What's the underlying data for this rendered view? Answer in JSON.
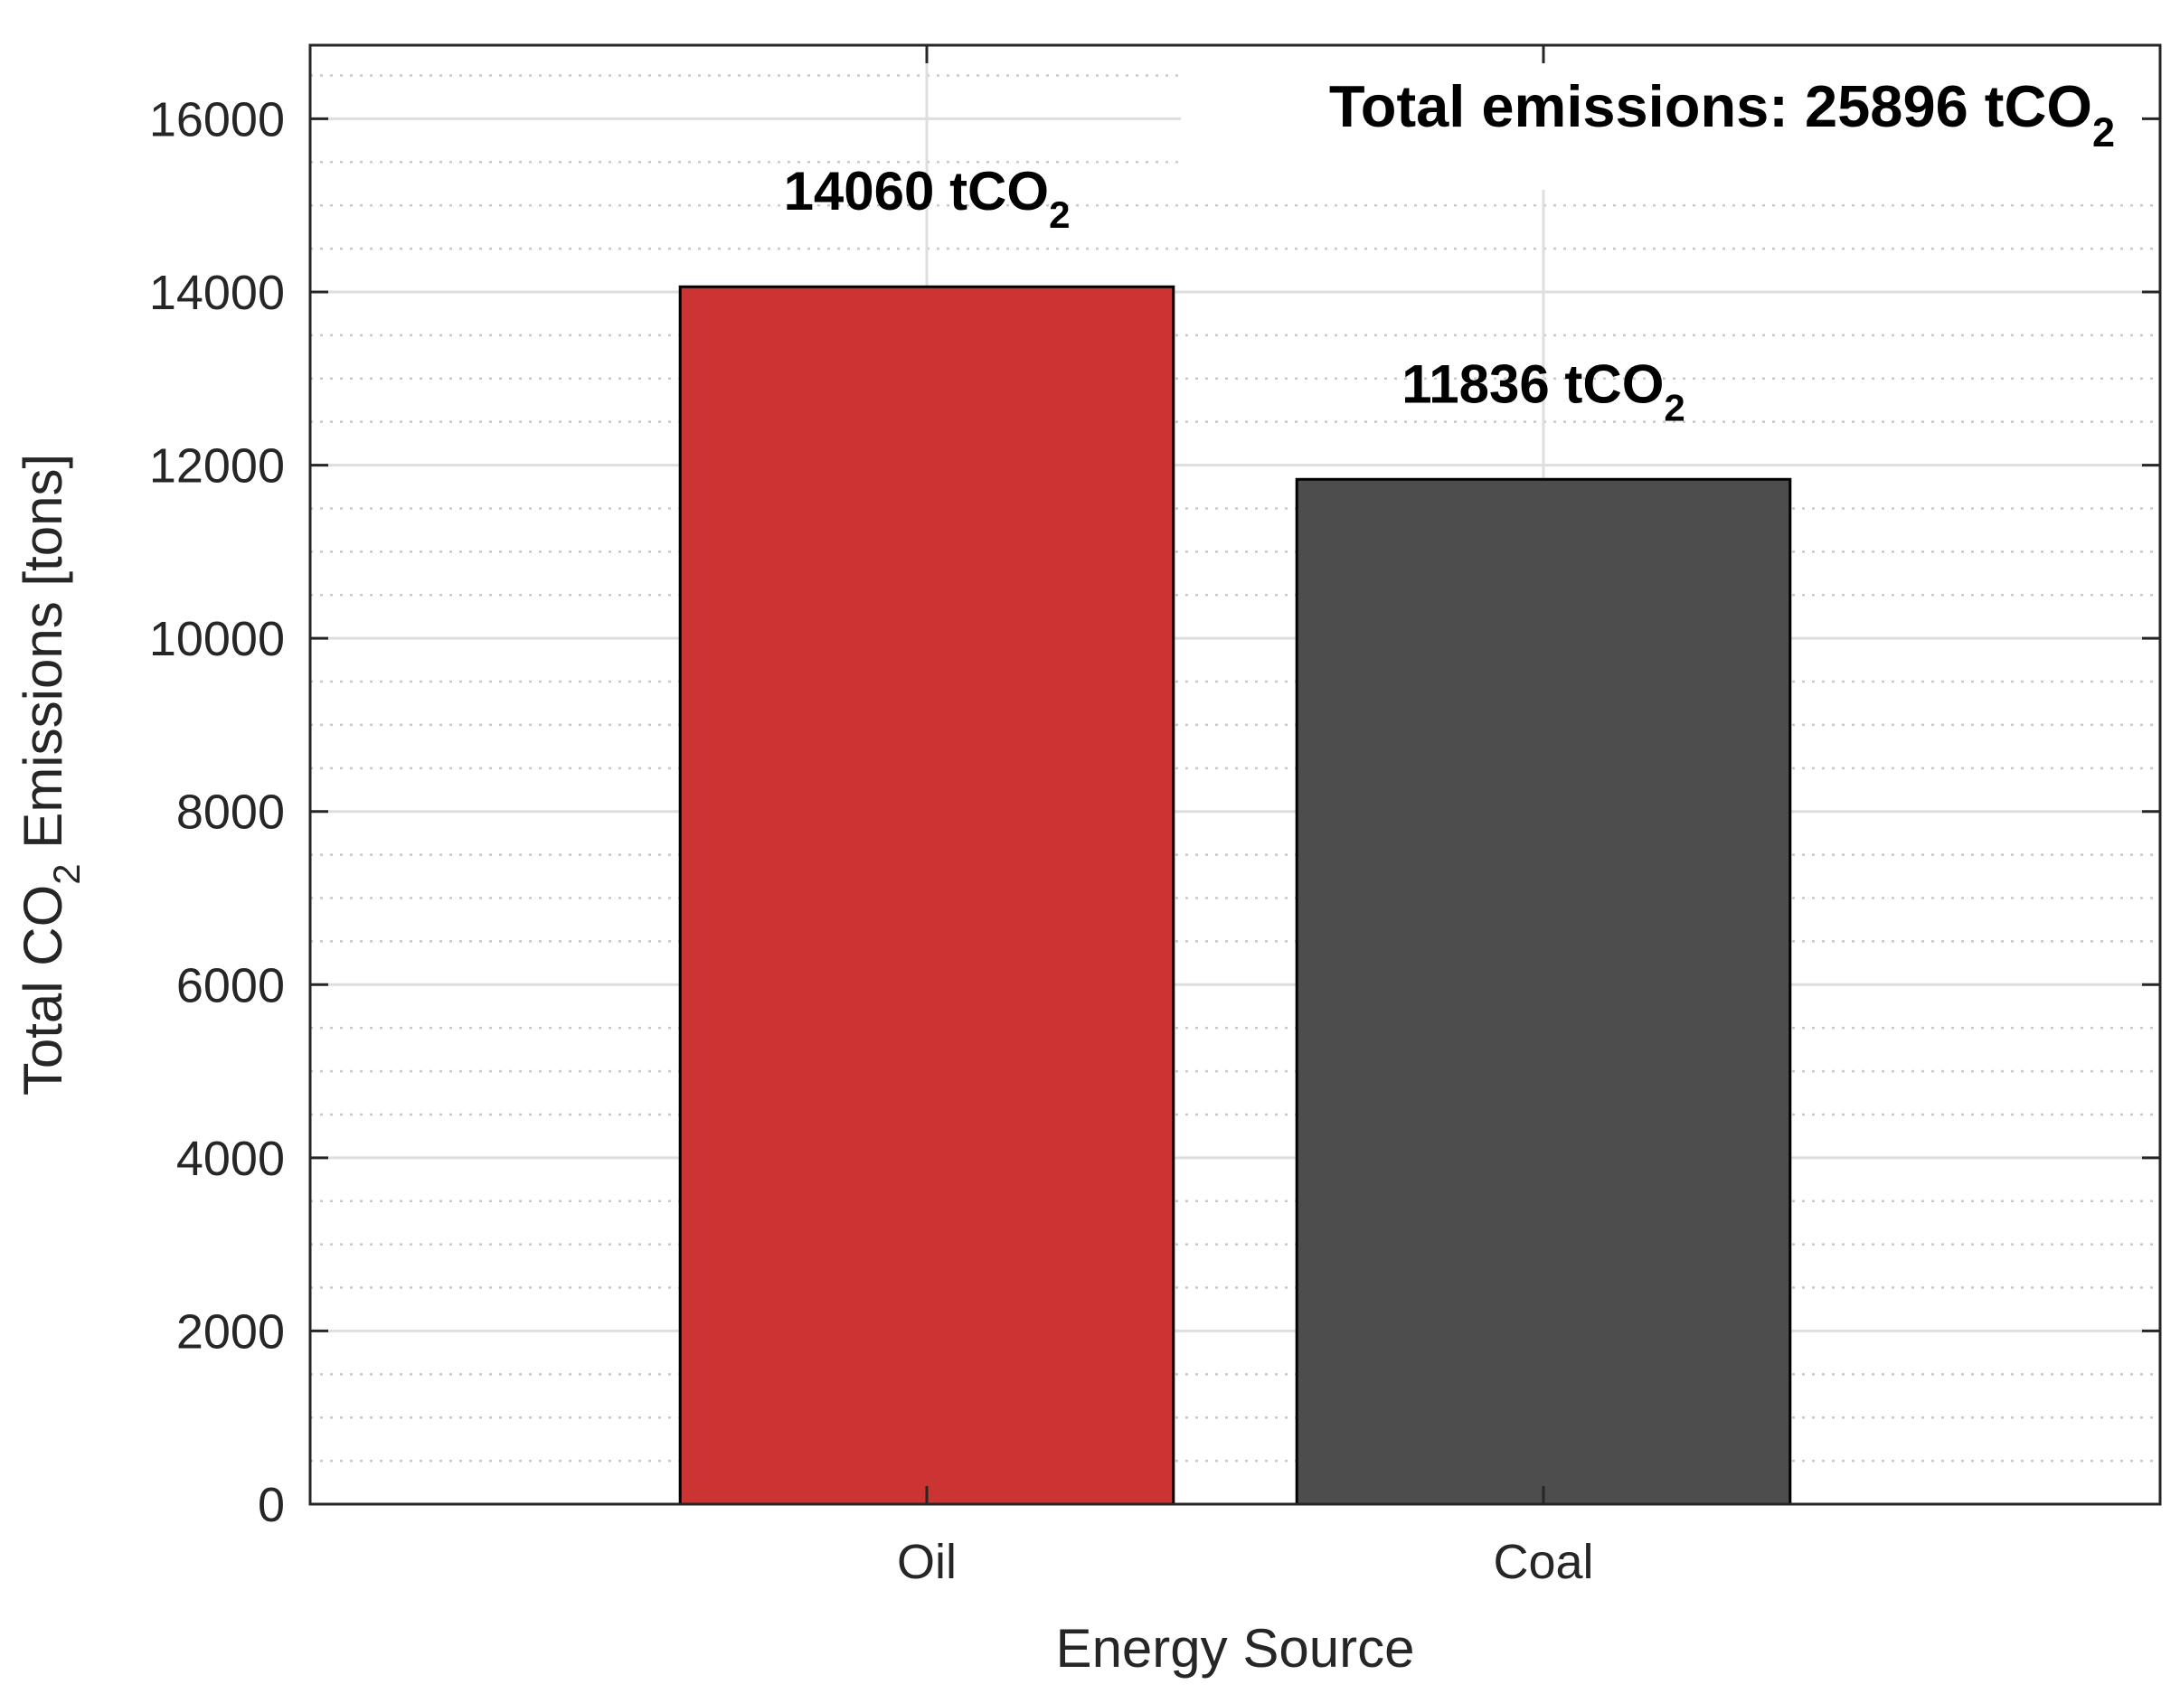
{
  "chart_data": {
    "type": "bar",
    "categories": [
      "Oil",
      "Coal"
    ],
    "values": [
      14060,
      11836
    ],
    "colors": [
      "#cc3333",
      "#4d4d4d"
    ],
    "data_labels": [
      {
        "text": "14060 tCO",
        "sub": "2"
      },
      {
        "text": "11836 tCO",
        "sub": "2"
      }
    ],
    "annotation": {
      "text": "Total emissions: 25896 tCO",
      "sub": "2"
    },
    "xlabel": "Energy Source",
    "ylabel": {
      "pre": "Total CO",
      "sub": "2",
      "post": " Emissions [tons]"
    },
    "ylim": [
      0,
      16850
    ],
    "yticks": [
      0,
      2000,
      4000,
      6000,
      8000,
      10000,
      12000,
      14000,
      16000
    ],
    "minor_step": 500,
    "grid": true,
    "minor_grid": true
  }
}
